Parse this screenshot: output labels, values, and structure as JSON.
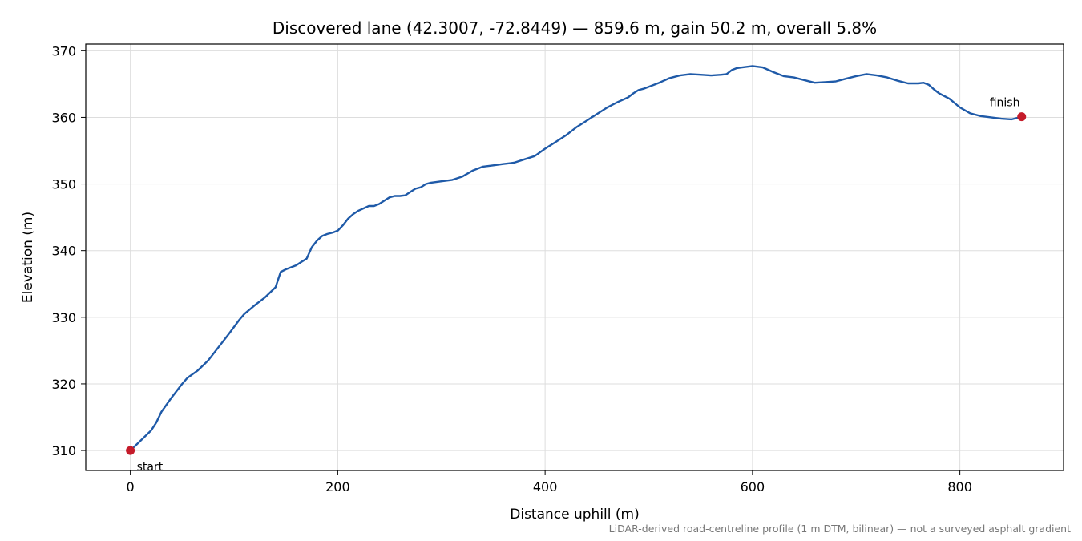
{
  "chart_data": {
    "type": "line",
    "title": "Discovered lane (42.3007, -72.8449) — 859.6 m, gain 50.2 m, overall 5.8%",
    "xlabel": "Distance uphill (m)",
    "ylabel": "Elevation (m)",
    "xlim": [
      -43,
      900
    ],
    "ylim": [
      307,
      371
    ],
    "x_ticks": [
      0,
      200,
      400,
      600,
      800
    ],
    "y_ticks": [
      310,
      320,
      330,
      340,
      350,
      360,
      370
    ],
    "grid": true,
    "footnote": "LiDAR-derived road-centreline profile (1 m DTM, bilinear) — not a surveyed asphalt gradient",
    "colors": {
      "line": "#1f5aa8",
      "markers": "#c51b2a",
      "grid": "#dddddd"
    },
    "series": [
      {
        "x": [
          0,
          10,
          20,
          25,
          30,
          40,
          50,
          55,
          65,
          75,
          85,
          95,
          105,
          110,
          120,
          130,
          140,
          145,
          150,
          155,
          160,
          165,
          170,
          175,
          180,
          185,
          190,
          195,
          200,
          205,
          210,
          215,
          220,
          230,
          235,
          240,
          245,
          250,
          255,
          260,
          265,
          270,
          275,
          280,
          285,
          290,
          300,
          310,
          320,
          330,
          340,
          350,
          360,
          370,
          380,
          390,
          400,
          410,
          420,
          430,
          440,
          450,
          460,
          470,
          480,
          485,
          490,
          495,
          500,
          510,
          520,
          530,
          540,
          550,
          560,
          570,
          575,
          580,
          585,
          590,
          600,
          610,
          620,
          630,
          640,
          650,
          660,
          670,
          680,
          690,
          700,
          710,
          720,
          730,
          740,
          750,
          760,
          765,
          770,
          775,
          780,
          790,
          800,
          810,
          820,
          830,
          840,
          850,
          859.6
        ],
        "y": [
          310.0,
          311.5,
          313.0,
          314.2,
          315.8,
          318.0,
          320.0,
          320.9,
          322.0,
          323.5,
          325.5,
          327.5,
          329.6,
          330.5,
          331.8,
          333.0,
          334.5,
          336.8,
          337.2,
          337.5,
          337.8,
          338.3,
          338.8,
          340.5,
          341.5,
          342.2,
          342.5,
          342.7,
          343.0,
          343.8,
          344.8,
          345.5,
          346.0,
          346.7,
          346.7,
          347.0,
          347.5,
          348.0,
          348.2,
          348.2,
          348.3,
          348.8,
          349.3,
          349.5,
          350.0,
          350.2,
          350.4,
          350.6,
          351.1,
          352.0,
          352.6,
          352.8,
          353.0,
          353.2,
          353.7,
          354.2,
          355.3,
          356.3,
          357.3,
          358.5,
          359.5,
          360.5,
          361.5,
          362.3,
          363.0,
          363.6,
          364.1,
          364.3,
          364.6,
          365.2,
          365.9,
          366.3,
          366.5,
          366.4,
          366.3,
          366.4,
          366.5,
          367.1,
          367.4,
          367.5,
          367.7,
          367.5,
          366.8,
          366.2,
          366.0,
          365.6,
          365.2,
          365.3,
          365.4,
          365.8,
          366.2,
          366.5,
          366.3,
          366.0,
          365.5,
          365.1,
          365.1,
          365.2,
          364.9,
          364.2,
          363.6,
          362.8,
          361.5,
          360.6,
          360.2,
          360.0,
          359.8,
          359.7,
          360.1
        ]
      }
    ],
    "annotations": [
      {
        "text": "start",
        "x": 0,
        "y": 310.0
      },
      {
        "text": "finish",
        "x": 859.6,
        "y": 360.1
      }
    ]
  }
}
